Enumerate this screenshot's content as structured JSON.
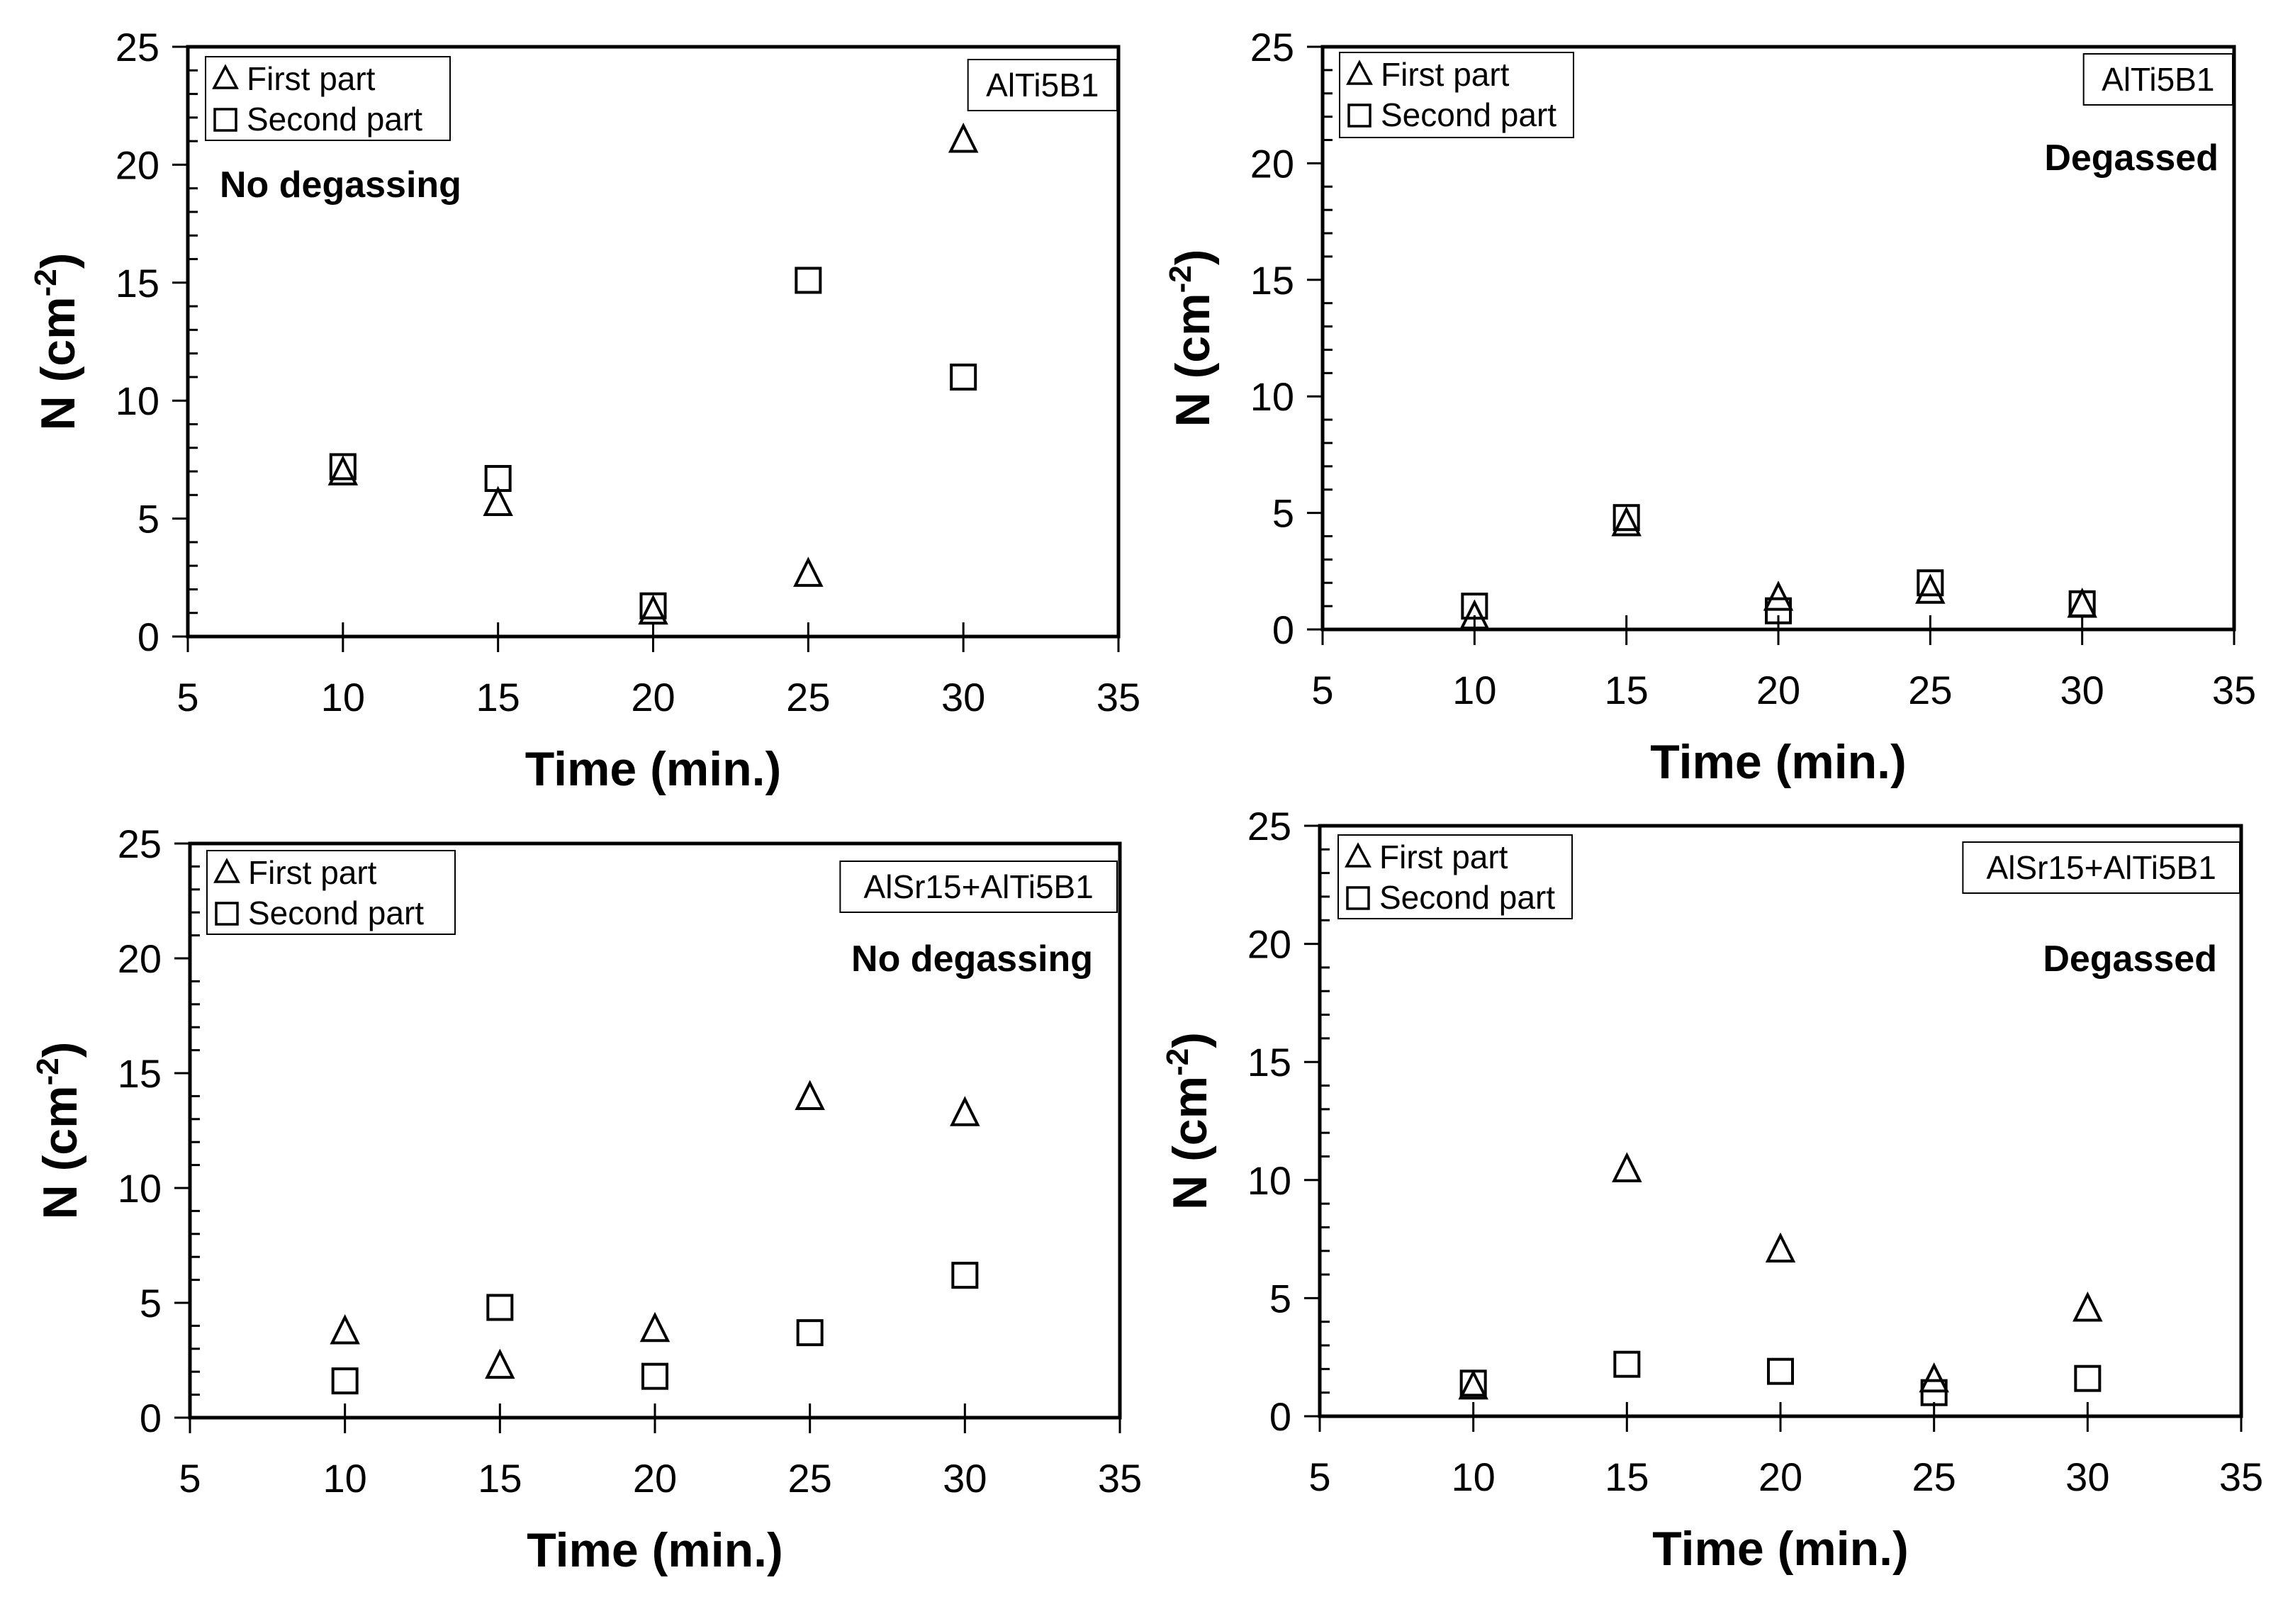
{
  "chart_data": [
    {
      "type": "scatter",
      "label": "AlTi5B1",
      "condition": "No degassing",
      "xlabel": "Time (min.)",
      "ylabel_main": "N (cm",
      "ylabel_sup": "-2",
      "ylabel_tail": ")",
      "xlim": [
        5,
        35
      ],
      "ylim": [
        0,
        25
      ],
      "xticks": [
        "5",
        "10",
        "15",
        "20",
        "25",
        "30",
        "35"
      ],
      "yticks": [
        "0",
        "5",
        "10",
        "15",
        "20",
        "25"
      ],
      "legend": {
        "position": "top-left"
      },
      "series": [
        {
          "name": "First part",
          "marker": "triangle",
          "x": [
            10,
            15,
            20,
            25,
            30
          ],
          "y": [
            6.9,
            5.6,
            1.0,
            2.6,
            21.0
          ]
        },
        {
          "name": "Second part",
          "marker": "square",
          "x": [
            10,
            15,
            20,
            25,
            30
          ],
          "y": [
            7.2,
            6.7,
            1.3,
            15.1,
            11.0
          ]
        }
      ]
    },
    {
      "type": "scatter",
      "label": "AlTi5B1",
      "condition": "Degassed",
      "xlabel": "Time (min.)",
      "ylabel_main": "N (cm",
      "ylabel_sup": "-2",
      "ylabel_tail": ")",
      "xlim": [
        5,
        35
      ],
      "ylim": [
        0,
        25
      ],
      "xticks": [
        "5",
        "10",
        "15",
        "20",
        "25",
        "30",
        "35"
      ],
      "yticks": [
        "0",
        "5",
        "10",
        "15",
        "20",
        "25"
      ],
      "legend": {
        "position": "top-left"
      },
      "series": [
        {
          "name": "First part",
          "marker": "triangle",
          "x": [
            10,
            15,
            20,
            25,
            30
          ],
          "y": [
            0.5,
            4.5,
            1.3,
            1.6,
            1.0
          ]
        },
        {
          "name": "Second part",
          "marker": "square",
          "x": [
            10,
            15,
            20,
            25,
            30
          ],
          "y": [
            1.0,
            4.8,
            0.8,
            2.0,
            1.1
          ]
        }
      ]
    },
    {
      "type": "scatter",
      "label": "AlSr15+AlTi5B1",
      "condition": "No degassing",
      "xlabel": "Time (min.)",
      "ylabel_main": "N (cm",
      "ylabel_sup": "-2",
      "ylabel_tail": ")",
      "xlim": [
        5,
        35
      ],
      "ylim": [
        0,
        25
      ],
      "xticks": [
        "5",
        "10",
        "15",
        "20",
        "25",
        "30",
        "35"
      ],
      "yticks": [
        "0",
        "5",
        "10",
        "15",
        "20",
        "25"
      ],
      "legend": {
        "position": "top-left"
      },
      "series": [
        {
          "name": "First part",
          "marker": "triangle",
          "x": [
            10,
            15,
            20,
            25,
            30
          ],
          "y": [
            3.7,
            2.2,
            3.8,
            13.9,
            13.2
          ]
        },
        {
          "name": "Second part",
          "marker": "square",
          "x": [
            10,
            15,
            20,
            25,
            30
          ],
          "y": [
            1.6,
            4.8,
            1.8,
            3.7,
            6.2
          ]
        }
      ]
    },
    {
      "type": "scatter",
      "label": "AlSr15+AlTi5B1",
      "condition": "Degassed",
      "xlabel": "Time (min.)",
      "ylabel_main": "N (cm",
      "ylabel_sup": "-2",
      "ylabel_tail": ")",
      "xlim": [
        5,
        35
      ],
      "ylim": [
        0,
        25
      ],
      "xticks": [
        "5",
        "10",
        "15",
        "20",
        "25",
        "30",
        "35"
      ],
      "yticks": [
        "0",
        "5",
        "10",
        "15",
        "20",
        "25"
      ],
      "legend": {
        "position": "top-left"
      },
      "series": [
        {
          "name": "First part",
          "marker": "triangle",
          "x": [
            10,
            15,
            20,
            25,
            30
          ],
          "y": [
            1.2,
            10.4,
            7.0,
            1.5,
            4.5
          ]
        },
        {
          "name": "Second part",
          "marker": "square",
          "x": [
            10,
            15,
            20,
            25,
            30
          ],
          "y": [
            1.4,
            2.2,
            1.9,
            1.0,
            1.6
          ]
        }
      ]
    }
  ]
}
